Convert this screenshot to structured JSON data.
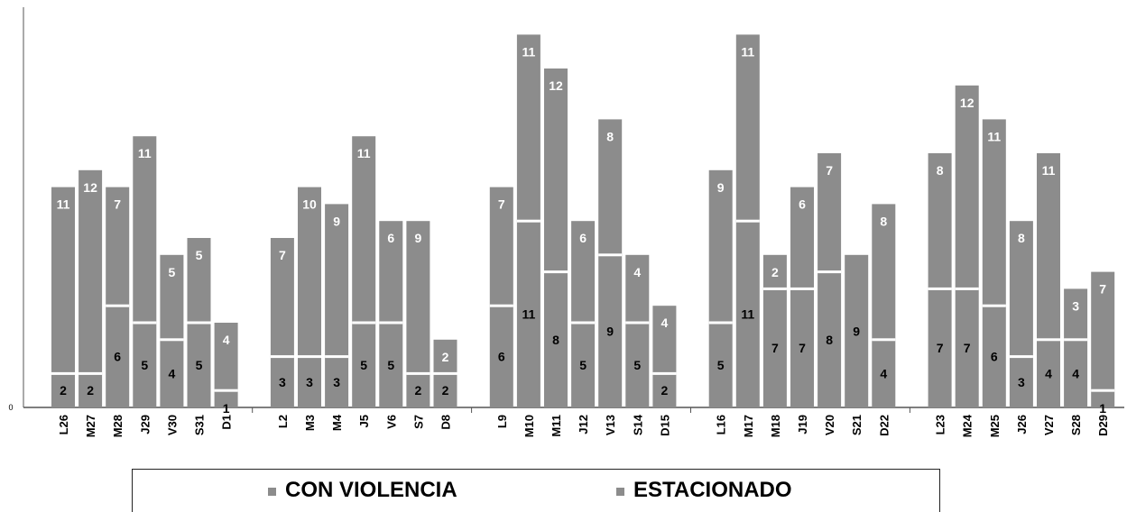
{
  "chart_data": {
    "type": "bar",
    "stacked": true,
    "y_tick_label": "0",
    "ylim": [
      0,
      22
    ],
    "group_sizes": [
      7,
      7,
      7,
      7,
      7
    ],
    "categories": [
      "L26",
      "M27",
      "M28",
      "J29",
      "V30",
      "S31",
      "D1",
      "L2",
      "M3",
      "M4",
      "J5",
      "V6",
      "S7",
      "D8",
      "L9",
      "M10",
      "M11",
      "J12",
      "V13",
      "S14",
      "D15",
      "L16",
      "M17",
      "M18",
      "J19",
      "V20",
      "S21",
      "D22",
      "L23",
      "M24",
      "M25",
      "J26",
      "V27",
      "S28",
      "D29"
    ],
    "series": [
      {
        "name": "ESTACIONADO",
        "color": "#8c8c8c",
        "label_color": "#000000",
        "values": [
          2,
          2,
          6,
          5,
          4,
          5,
          1,
          3,
          3,
          3,
          5,
          5,
          2,
          2,
          6,
          11,
          8,
          5,
          9,
          5,
          2,
          5,
          11,
          7,
          7,
          8,
          9,
          4,
          7,
          7,
          6,
          3,
          4,
          4,
          1
        ]
      },
      {
        "name": "CON VIOLENCIA",
        "color": "#8c8c8c",
        "label_color": "#ffffff",
        "values": [
          11,
          12,
          7,
          11,
          5,
          5,
          4,
          7,
          10,
          9,
          11,
          6,
          9,
          2,
          7,
          11,
          12,
          6,
          8,
          4,
          4,
          9,
          11,
          2,
          6,
          7,
          0,
          8,
          8,
          12,
          11,
          8,
          11,
          3,
          7
        ]
      }
    ],
    "legend": [
      "CON VIOLENCIA",
      "ESTACIONADO"
    ],
    "legend_position": "bottom",
    "grid": false
  }
}
